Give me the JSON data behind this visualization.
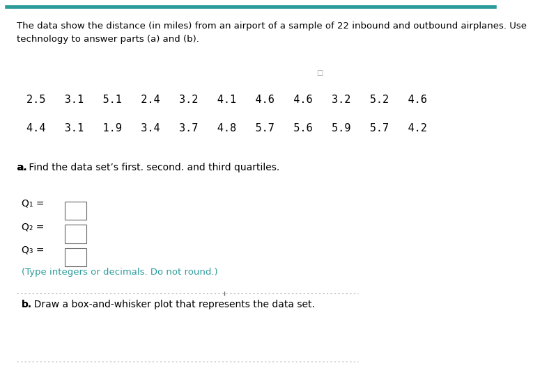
{
  "title_text": "The data show the distance (in miles) from an airport of a sample of 22 inbound and outbound airplanes. Use\ntechnology to answer parts (a) and (b).",
  "data_row1": "2.5   3.1   5.1   2.4   3.2   4.1   4.6   4.6   3.2   5.2   4.6",
  "data_row2": "4.4   3.1   1.9   3.4   3.7   4.8   5.7   5.6   5.9   5.7   4.2",
  "part_a_label": "a. Find the data set’s first. second. and third quartiles.",
  "part_a_bold": "a.",
  "q1_label": "Q₁ =",
  "q2_label": "Q₂ =",
  "q3_label": "Q₃ =",
  "type_note": "(Type integers or decimals. Do not round.)",
  "part_b_label": "b. Draw a box-and-whisker plot that represents the data set.",
  "part_b_bold": "b.",
  "bg_color": "#ffffff",
  "text_color": "#000000",
  "teal_color": "#2E9B9B",
  "small_box_color": "#ffffff",
  "small_box_edge": "#666666",
  "line_color": "#aaaaaa",
  "font_size_title": 9.5,
  "font_size_data": 11,
  "font_size_labels": 10,
  "font_size_note": 9.5
}
